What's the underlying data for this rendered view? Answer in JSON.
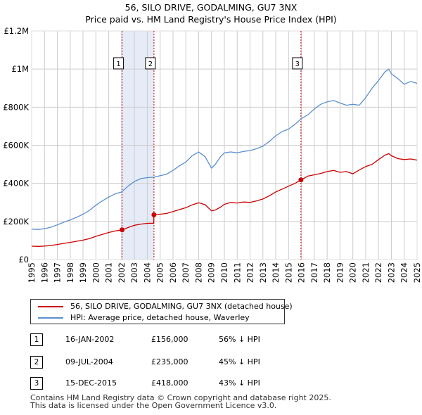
{
  "header": {
    "title": "56, SILO DRIVE, GODALMING, GU7 3NX",
    "subtitle": "Price paid vs. HM Land Registry's House Price Index (HPI)"
  },
  "colors": {
    "property": "#cc0000",
    "hpi": "#5b8fcf",
    "shade": "#e5ecf8",
    "grid": "#cccccc",
    "dashes": "#cc0000"
  },
  "chart_data": {
    "type": "line",
    "title": "56, SILO DRIVE, GODALMING, GU7 3NX",
    "subtitle": "Price paid vs. HM Land Registry's House Price Index (HPI)",
    "xlabel": "",
    "ylabel": "",
    "xlim": [
      1995,
      2025
    ],
    "ylim": [
      0,
      1200000
    ],
    "y_ticks": [
      0,
      200000,
      400000,
      600000,
      800000,
      1000000,
      1200000
    ],
    "y_tick_labels": [
      "£0",
      "£200K",
      "£400K",
      "£600K",
      "£800K",
      "£1M",
      "£1.2M"
    ],
    "x_ticks": [
      "1995",
      "1996",
      "1997",
      "1998",
      "1999",
      "2000",
      "2001",
      "2002",
      "2003",
      "2004",
      "2005",
      "2006",
      "2007",
      "2008",
      "2009",
      "2010",
      "2011",
      "2012",
      "2013",
      "2014",
      "2015",
      "2016",
      "2017",
      "2018",
      "2019",
      "2020",
      "2021",
      "2022",
      "2023",
      "2024",
      "2025"
    ],
    "grid": true,
    "shaded_regions": [
      [
        2002.04,
        2004.52
      ]
    ],
    "series": [
      {
        "name": "56, SILO DRIVE, GODALMING, GU7 3NX (detached house)",
        "color": "#cc0000",
        "x": [
          1995,
          1995.5,
          1996,
          1996.5,
          1997,
          1997.5,
          1998,
          1998.5,
          1999,
          1999.5,
          2000,
          2000.5,
          2001,
          2001.5,
          2002.04,
          2002.5,
          2003,
          2003.5,
          2004,
          2004.5,
          2004.52,
          2005,
          2005.5,
          2006,
          2006.5,
          2007,
          2007.5,
          2008,
          2008.5,
          2009,
          2009.3,
          2009.7,
          2010,
          2010.5,
          2011,
          2011.5,
          2012,
          2012.5,
          2013,
          2013.5,
          2014,
          2014.5,
          2015,
          2015.5,
          2015.96,
          2016.5,
          2017,
          2017.5,
          2018,
          2018.5,
          2019,
          2019.5,
          2020,
          2020.5,
          2021,
          2021.5,
          2022,
          2022.5,
          2022.8,
          2023,
          2023.5,
          2024,
          2024.5,
          2025
        ],
        "y": [
          70000,
          69000,
          71000,
          74000,
          79000,
          85000,
          90000,
          96000,
          102000,
          110000,
          122000,
          132000,
          142000,
          150000,
          156000,
          168000,
          180000,
          186000,
          190000,
          191000,
          235000,
          238000,
          242000,
          252000,
          262000,
          272000,
          287000,
          298000,
          288000,
          256000,
          260000,
          275000,
          290000,
          300000,
          297000,
          302000,
          300000,
          308000,
          318000,
          335000,
          355000,
          370000,
          385000,
          400000,
          418000,
          438000,
          445000,
          452000,
          462000,
          468000,
          458000,
          462000,
          450000,
          470000,
          488000,
          500000,
          525000,
          548000,
          556000,
          545000,
          530000,
          525000,
          528000,
          522000
        ]
      },
      {
        "name": "HPI: Average price, detached house, Waverley",
        "color": "#5b8fcf",
        "x": [
          1995,
          1995.5,
          1996,
          1996.5,
          1997,
          1997.5,
          1998,
          1998.5,
          1999,
          1999.5,
          2000,
          2000.5,
          2001,
          2001.5,
          2002,
          2002.5,
          2003,
          2003.5,
          2004,
          2004.5,
          2005,
          2005.5,
          2006,
          2006.5,
          2007,
          2007.5,
          2008,
          2008.5,
          2009,
          2009.3,
          2009.7,
          2010,
          2010.5,
          2011,
          2011.5,
          2012,
          2012.5,
          2013,
          2013.5,
          2014,
          2014.5,
          2015,
          2015.5,
          2016,
          2016.5,
          2017,
          2017.5,
          2018,
          2018.5,
          2019,
          2019.5,
          2020,
          2020.5,
          2021,
          2021.5,
          2022,
          2022.5,
          2022.8,
          2023,
          2023.5,
          2024,
          2024.5,
          2025
        ],
        "y": [
          160000,
          158000,
          162000,
          170000,
          182000,
          196000,
          208000,
          222000,
          238000,
          258000,
          285000,
          308000,
          328000,
          345000,
          355000,
          385000,
          410000,
          425000,
          430000,
          432000,
          440000,
          448000,
          468000,
          492000,
          512000,
          545000,
          565000,
          540000,
          480000,
          500000,
          540000,
          560000,
          565000,
          560000,
          568000,
          572000,
          582000,
          595000,
          620000,
          650000,
          672000,
          685000,
          710000,
          740000,
          760000,
          790000,
          815000,
          828000,
          835000,
          822000,
          810000,
          815000,
          810000,
          850000,
          900000,
          940000,
          985000,
          1000000,
          975000,
          950000,
          920000,
          935000,
          925000
        ]
      }
    ],
    "annotations": [
      {
        "label": "1",
        "x": 2002.04,
        "y": 156000
      },
      {
        "label": "2",
        "x": 2004.52,
        "y": 235000
      },
      {
        "label": "3",
        "x": 2015.96,
        "y": 418000
      }
    ]
  },
  "legend": {
    "property_label": "56, SILO DRIVE, GODALMING, GU7 3NX (detached house)",
    "hpi_label": "HPI: Average price, detached house, Waverley"
  },
  "sales": [
    {
      "num": "1",
      "date": "16-JAN-2002",
      "price": "£156,000",
      "hpi": "56% ↓ HPI"
    },
    {
      "num": "2",
      "date": "09-JUL-2004",
      "price": "£235,000",
      "hpi": "45% ↓ HPI"
    },
    {
      "num": "3",
      "date": "15-DEC-2015",
      "price": "£418,000",
      "hpi": "43% ↓ HPI"
    }
  ],
  "footer": {
    "line1": "Contains HM Land Registry data © Crown copyright and database right 2025.",
    "line2": "This data is licensed under the Open Government Licence v3.0."
  }
}
